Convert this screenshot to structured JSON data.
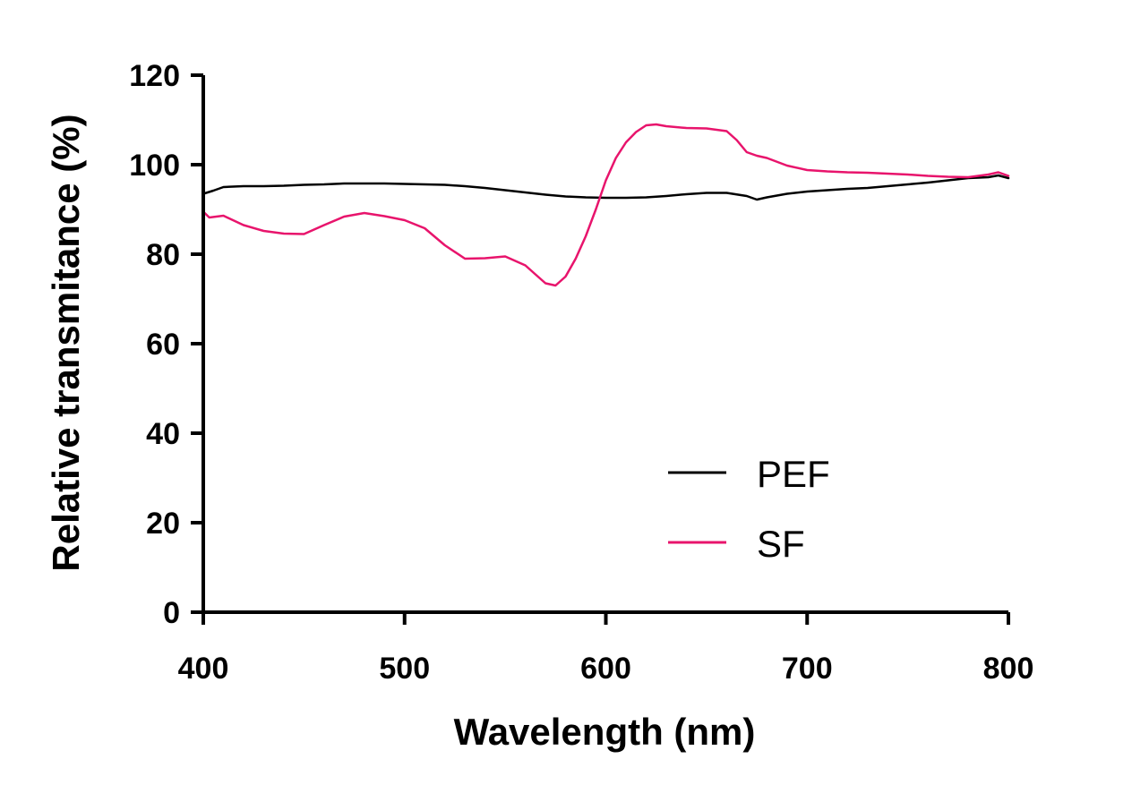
{
  "chart_data": {
    "type": "line",
    "title": "",
    "xlabel": "Wavelength (nm)",
    "ylabel": "Relative transmitance (%)",
    "xlim": [
      400,
      800
    ],
    "ylim": [
      0,
      120
    ],
    "xticks": [
      400,
      500,
      600,
      700,
      800
    ],
    "yticks": [
      0,
      20,
      40,
      60,
      80,
      100,
      120
    ],
    "grid": false,
    "legend_position": "lower-right",
    "series": [
      {
        "name": "PEF",
        "color": "#000000",
        "x": [
          400,
          405,
          410,
          420,
          430,
          440,
          450,
          460,
          470,
          480,
          490,
          500,
          510,
          520,
          530,
          540,
          550,
          560,
          570,
          580,
          590,
          600,
          610,
          620,
          630,
          640,
          650,
          660,
          670,
          675,
          680,
          690,
          700,
          710,
          720,
          730,
          740,
          750,
          760,
          770,
          780,
          790,
          795,
          800
        ],
        "y": [
          93.5,
          94.2,
          95.0,
          95.2,
          95.2,
          95.3,
          95.5,
          95.6,
          95.8,
          95.8,
          95.8,
          95.7,
          95.6,
          95.5,
          95.2,
          94.8,
          94.3,
          93.8,
          93.3,
          92.9,
          92.7,
          92.6,
          92.6,
          92.7,
          93.0,
          93.4,
          93.7,
          93.7,
          93.0,
          92.2,
          92.7,
          93.5,
          94.0,
          94.3,
          94.6,
          94.8,
          95.2,
          95.6,
          96.0,
          96.5,
          97.0,
          97.2,
          97.6,
          97.0
        ]
      },
      {
        "name": "SF",
        "color": "#e8146c",
        "x": [
          400,
          403,
          410,
          420,
          430,
          440,
          450,
          460,
          470,
          480,
          490,
          500,
          510,
          520,
          530,
          540,
          550,
          560,
          565,
          570,
          575,
          580,
          585,
          590,
          595,
          600,
          605,
          610,
          615,
          620,
          625,
          630,
          640,
          650,
          660,
          665,
          670,
          675,
          680,
          690,
          700,
          710,
          720,
          730,
          740,
          750,
          760,
          770,
          780,
          790,
          795,
          800
        ],
        "y": [
          89.5,
          88.2,
          88.6,
          86.5,
          85.2,
          84.6,
          84.5,
          86.5,
          88.4,
          89.2,
          88.5,
          87.6,
          85.8,
          82.0,
          79.0,
          79.1,
          79.5,
          77.5,
          75.5,
          73.5,
          73.0,
          75.0,
          79.0,
          84.0,
          90.0,
          96.5,
          101.5,
          105.0,
          107.3,
          108.8,
          109.0,
          108.6,
          108.2,
          108.1,
          107.5,
          105.5,
          102.8,
          102.0,
          101.5,
          99.8,
          98.8,
          98.5,
          98.3,
          98.2,
          98.0,
          97.8,
          97.5,
          97.3,
          97.2,
          97.8,
          98.3,
          97.5
        ]
      }
    ]
  }
}
